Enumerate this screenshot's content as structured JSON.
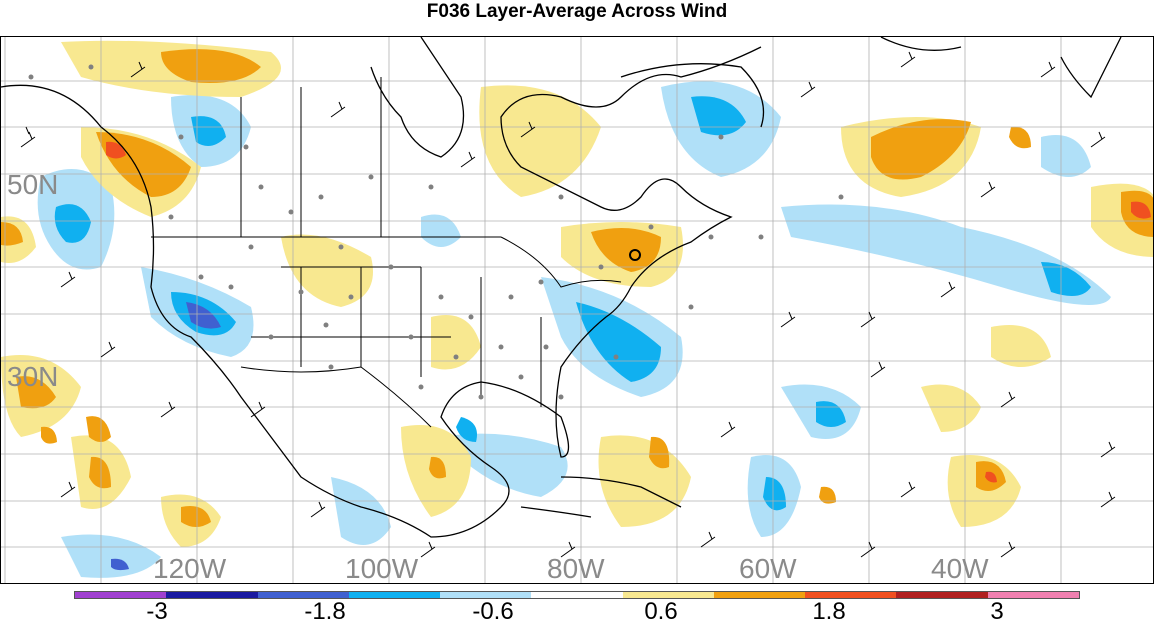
{
  "title": "F036 Layer-Average Across Wind",
  "latitude_labels": [
    "50N",
    "30N"
  ],
  "longitude_labels": [
    "120W",
    "100W",
    "80W",
    "60W",
    "40W"
  ],
  "colorbar": {
    "tick_labels": [
      "-3",
      "-1.8",
      "-0.6",
      "0.6",
      "1.8",
      "3"
    ],
    "colors": [
      "#a040d0",
      "#1a1aa0",
      "#4060d0",
      "#10b0f0",
      "#b0e0f8",
      "#ffffff",
      "#f8e890",
      "#f0a010",
      "#f05020",
      "#b02020",
      "#f080b0"
    ]
  }
}
